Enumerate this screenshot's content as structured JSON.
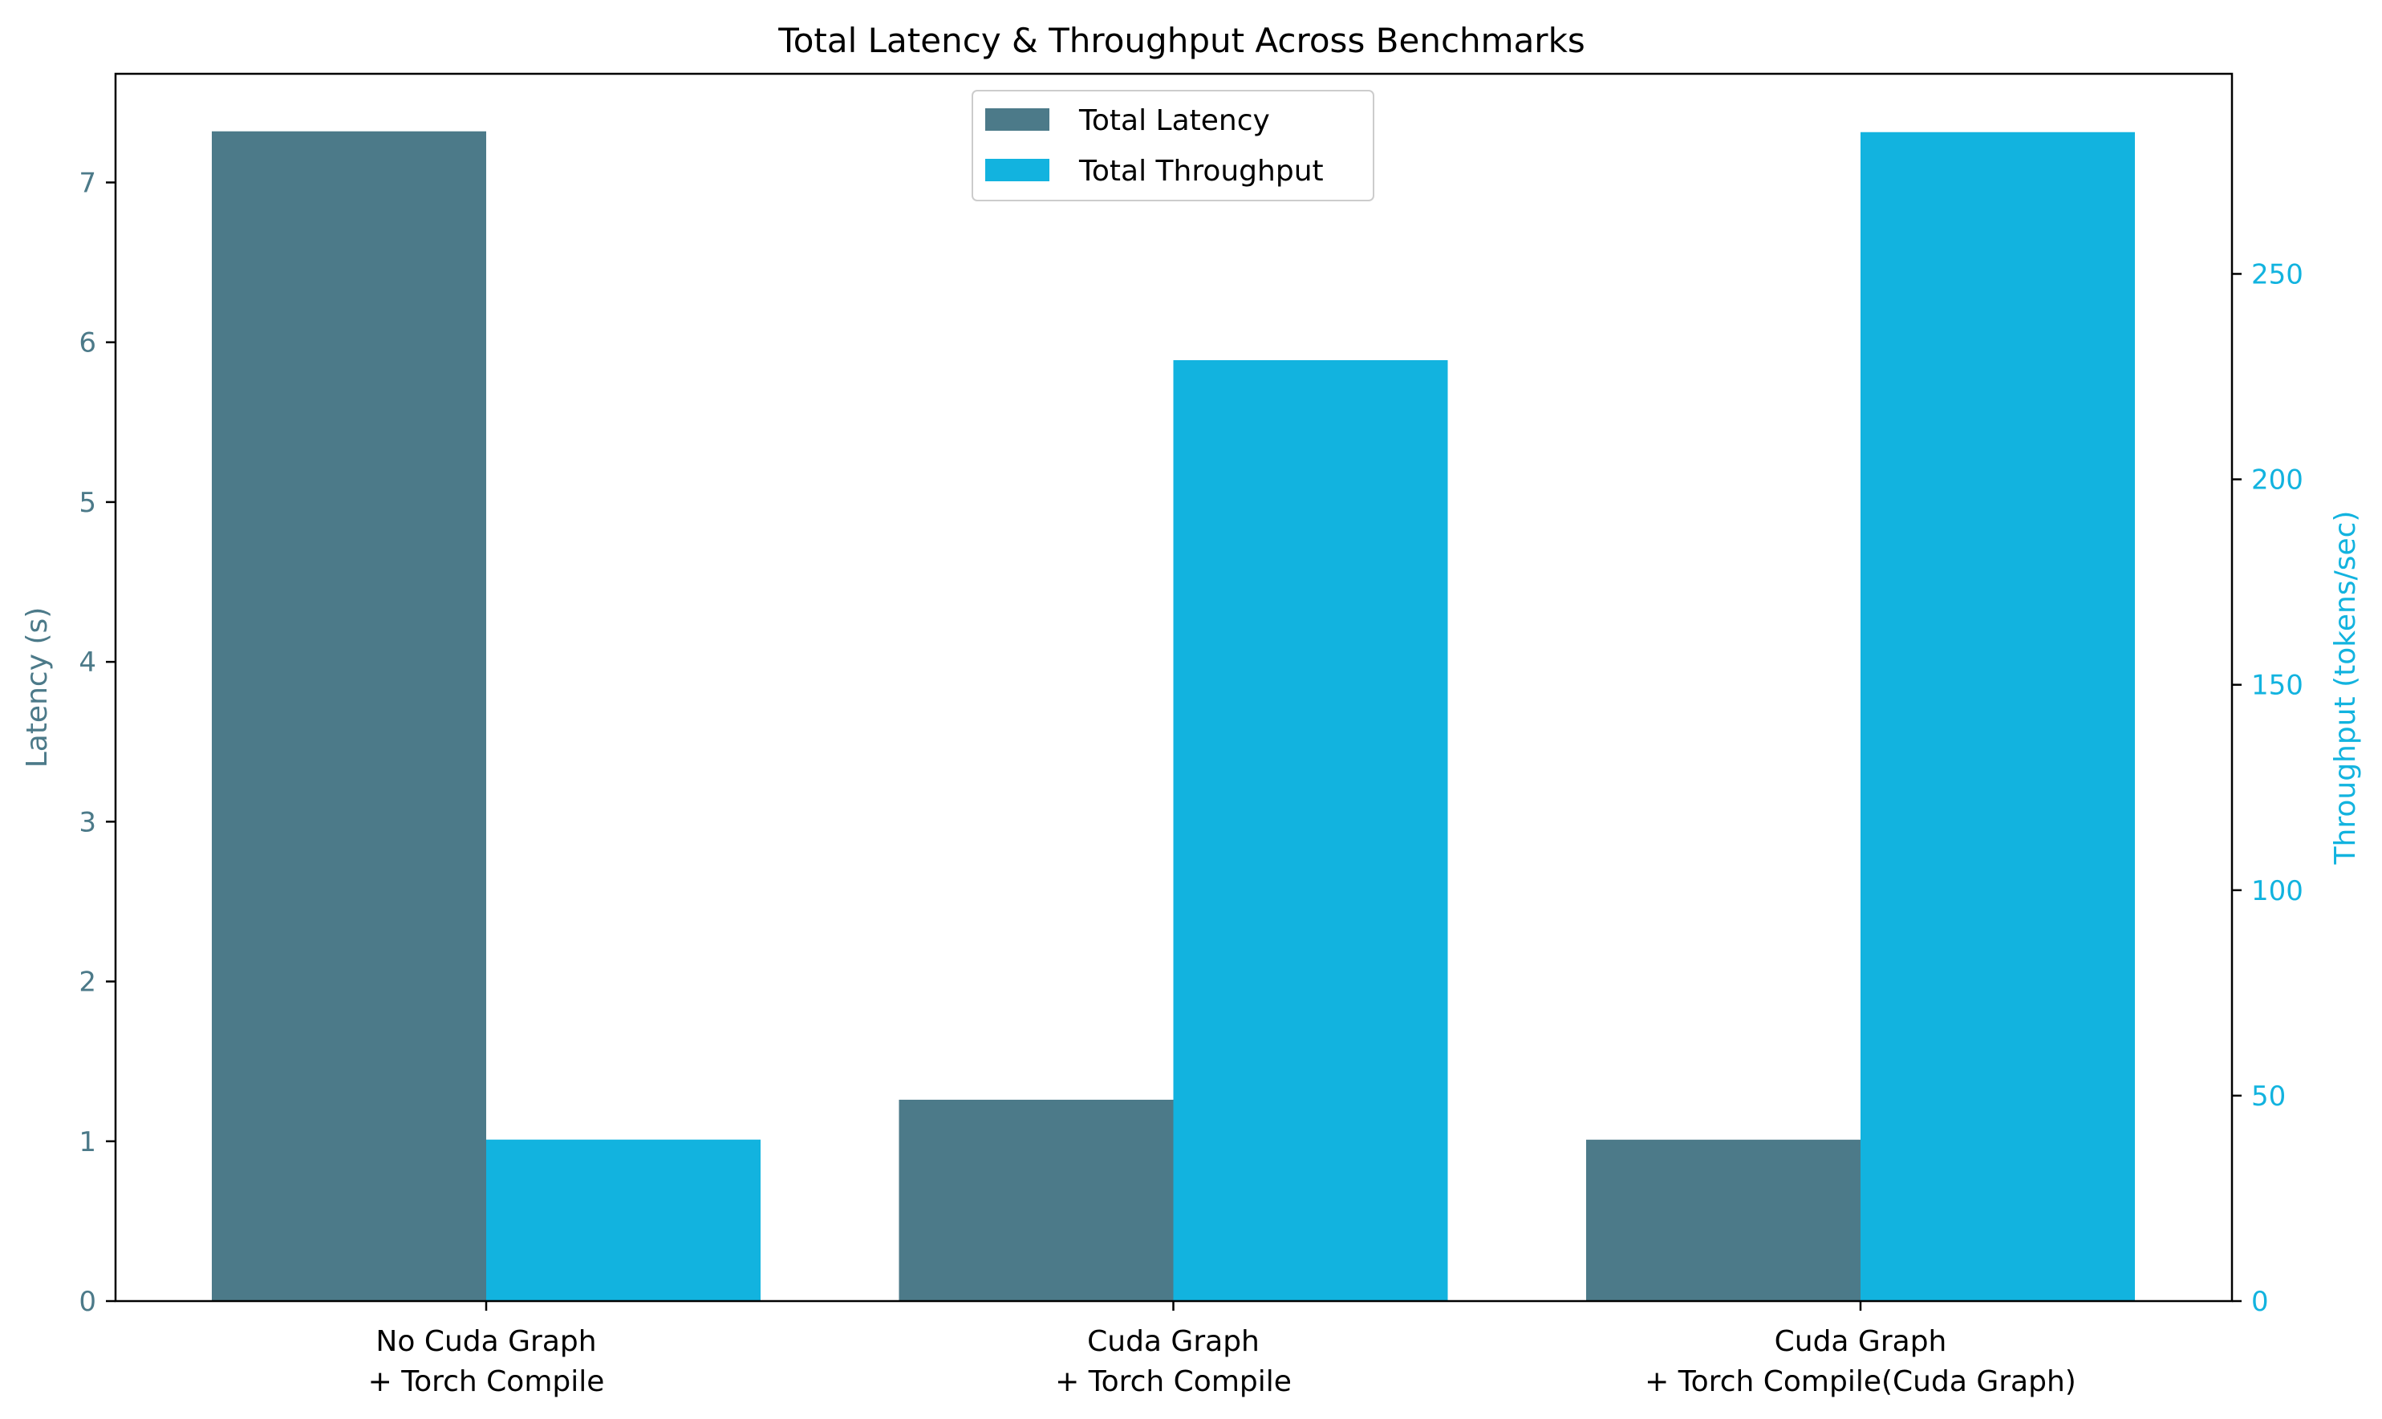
{
  "chart_data": {
    "type": "bar",
    "title": "Total Latency & Throughput Across Benchmarks",
    "categories": [
      [
        "No Cuda Graph",
        "+ Torch Compile"
      ],
      [
        "Cuda Graph",
        "+ Torch Compile"
      ],
      [
        "Cuda Graph",
        "+ Torch Compile(Cuda Graph)"
      ]
    ],
    "series": [
      {
        "name": "Total Latency",
        "axis": "left",
        "color": "#4c7a89",
        "values": [
          7.32,
          1.26,
          1.01
        ]
      },
      {
        "name": "Total Throughput",
        "axis": "right",
        "color": "#12b3df",
        "values": [
          39.3,
          229.0,
          284.5
        ]
      }
    ],
    "y_left": {
      "label": "Latency (s)",
      "color": "#4c7a89",
      "ylim": [
        0,
        7.68
      ],
      "ticks": [
        0,
        1,
        2,
        3,
        4,
        5,
        6,
        7
      ]
    },
    "y_right": {
      "label": "Throughput (tokens/sec)",
      "color": "#12b3df",
      "ylim": [
        0,
        298.7
      ],
      "ticks": [
        0,
        50,
        100,
        150,
        200,
        250
      ]
    },
    "legend": {
      "position": "upper-center",
      "entries": [
        "Total Latency",
        "Total Throughput"
      ]
    },
    "grid": false
  }
}
